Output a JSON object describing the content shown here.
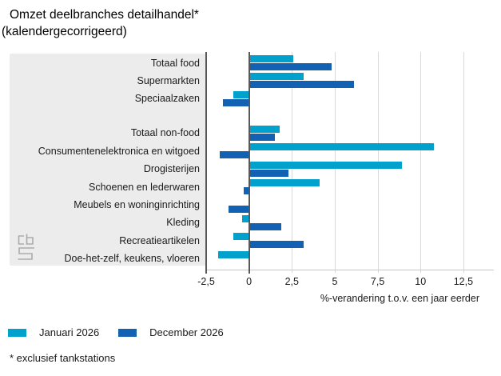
{
  "title": {
    "line1": "Omzet deelbranches detailhandel*",
    "line2": "(kalendergecorrigeerd)"
  },
  "chart_data": {
    "type": "bar",
    "orientation": "horizontal",
    "title": "Omzet deelbranches detailhandel* (kalendergecorrigeerd)",
    "categories": [
      "Totaal food",
      "Supermarkten",
      "Speciaalzaken",
      "Totaal non-food",
      "Consumentenelektronica en witgoed",
      "Drogisterijen",
      "Schoenen en lederwaren",
      "Meubels en woninginrichting",
      "Kleding",
      "Recreatieartikelen",
      "Doe-het-zelf, keukens, vloeren"
    ],
    "group_gap_after_index": 2,
    "series": [
      {
        "name": "Januari 2026",
        "color": "#00a1cd",
        "values": [
          2.6,
          3.2,
          -0.9,
          1.8,
          10.8,
          8.9,
          4.1,
          0,
          -0.4,
          -0.9,
          -1.8
        ]
      },
      {
        "name": "December 2026",
        "color": "#1261b2",
        "values": [
          4.8,
          6.1,
          -1.5,
          1.5,
          -1.7,
          2.3,
          -0.3,
          -1.2,
          1.9,
          3.2,
          0
        ]
      }
    ],
    "xlabel": "%-verandering t.o.v. een jaar eerder",
    "xlim": [
      -2.5,
      14.3
    ],
    "xticks": [
      -2.5,
      0,
      2.5,
      5,
      7.5,
      10,
      12.5
    ],
    "xtick_labels": [
      "-2,5",
      "0",
      "2,5",
      "5",
      "7,5",
      "10",
      "12,5"
    ],
    "grid": true,
    "legend_position": "bottom"
  },
  "footnote": "* exclusief tankstations",
  "logo": {
    "name": "cbs-logo"
  },
  "colors": {
    "series_light": "#00a1cd",
    "series_dark": "#1261b2",
    "label_panel": "#ececec",
    "gridline": "#d9d9d9",
    "zero_line": "#595959",
    "axis_line": "#c6c6c6"
  }
}
